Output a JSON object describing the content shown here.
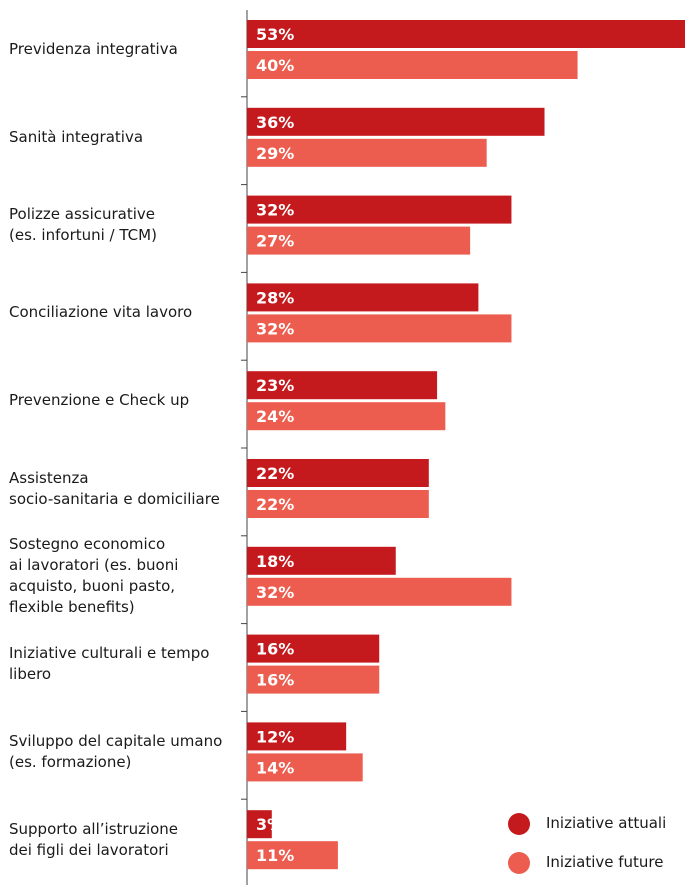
{
  "chart_data": {
    "type": "bar",
    "orientation": "horizontal",
    "categories": [
      "Previdenza integrativa",
      "Sanità integrativa",
      "Polizze assicurative\n(es. infortuni / TCM)",
      "Conciliazione vita lavoro",
      "Prevenzione e Check up",
      "Assistenza\nsocio-sanitaria e domiciliare",
      "Sostegno economico\nai lavoratori (es. buoni\nacquisto, buoni pasto,\nflexible benefits)",
      "Iniziative culturali e tempo\nlibero",
      "Sviluppo del capitale umano\n(es. formazione)",
      "Supporto all’istruzione\ndei figli dei lavoratori"
    ],
    "series": [
      {
        "name": "Iniziative attuali",
        "color": "#c4191d",
        "values": [
          53,
          36,
          32,
          28,
          23,
          22,
          18,
          16,
          12,
          3
        ]
      },
      {
        "name": "Iniziative future",
        "color": "#ec5c4f",
        "values": [
          40,
          29,
          27,
          32,
          24,
          22,
          32,
          16,
          14,
          11
        ]
      }
    ],
    "value_suffix": "%",
    "xlim": [
      0,
      53
    ],
    "legend_position": "bottom-right"
  }
}
